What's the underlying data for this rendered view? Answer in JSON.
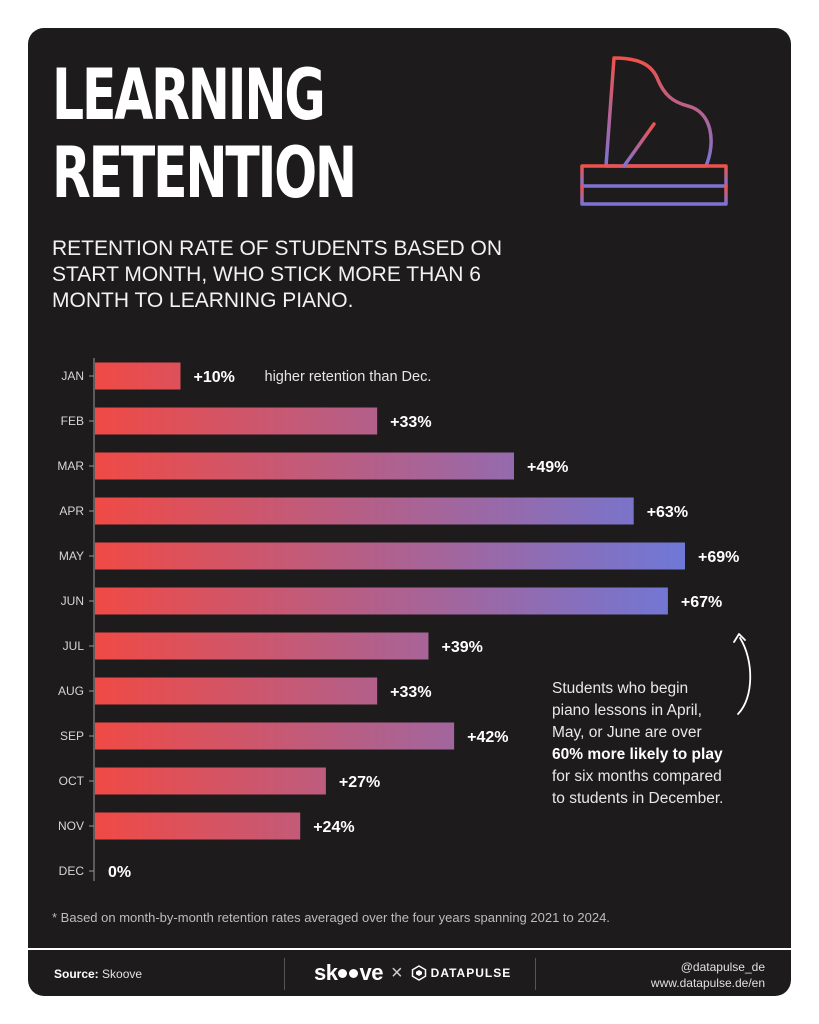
{
  "title": {
    "line1": "LEARNING",
    "line2": "RETENTION"
  },
  "subtitle": "RETENTION RATE OF STUDENTS BASED ON START MONTH, WHO STICK MORE THAN 6 MONTH TO LEARNING PIANO.",
  "chart_data": {
    "type": "bar",
    "orientation": "horizontal",
    "categories": [
      "JAN",
      "FEB",
      "MAR",
      "APR",
      "MAY",
      "JUN",
      "JUL",
      "AUG",
      "SEP",
      "OCT",
      "NOV",
      "DEC"
    ],
    "values": [
      10,
      33,
      49,
      63,
      69,
      67,
      39,
      33,
      42,
      27,
      24,
      0
    ],
    "value_labels": [
      "+10%",
      "+33%",
      "+49%",
      "+63%",
      "+69%",
      "+67%",
      "+39%",
      "+33%",
      "+42%",
      "+27%",
      "+24%",
      "0%"
    ],
    "annotation": "higher retention than Dec.",
    "unit": "%",
    "gradient": {
      "low": "#f04a45",
      "high": "#6e78d8"
    },
    "grid": false
  },
  "callout": {
    "line1": "Students who begin",
    "line2": "piano lessons in April,",
    "line3": "May, or June are over",
    "bold": "60% more likely to play",
    "line5": "for six months compared",
    "line6": "to students in December."
  },
  "footnote": "* Based on month-by-month retention rates averaged over the four years spanning 2021 to 2024.",
  "footer": {
    "source_label": "Source:",
    "source_value": "Skoove",
    "brand_left_a": "sk",
    "brand_left_b": "ve",
    "brand_times": "×",
    "brand_right": "DATAPULSE",
    "handle": "@datapulse_de",
    "url": "www.datapulse.de/en"
  },
  "icons": {
    "piano": "grand-piano-icon",
    "arrow": "curved-arrow-icon",
    "datapulse": "datapulse-logo-icon"
  }
}
